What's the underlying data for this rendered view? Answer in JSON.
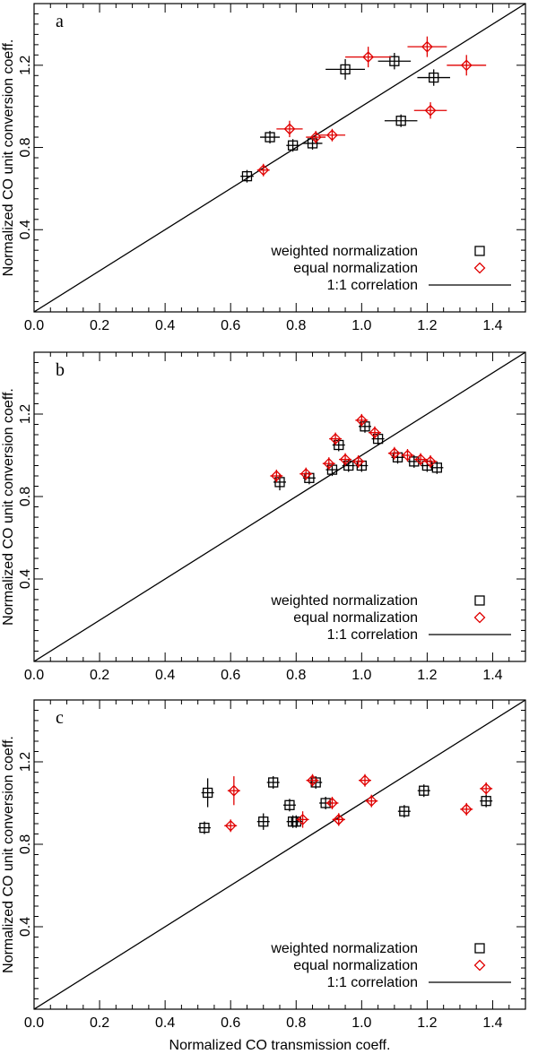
{
  "xlabel": "Normalized CO transmission coeff.",
  "ylabel": "Normalized CO unit conversion coeff.",
  "legend": {
    "weighted": "weighted normalization",
    "equal": "equal normalization",
    "line": "1:1 correlation"
  },
  "colors": {
    "weighted": "#000000",
    "equal": "#e00000",
    "line": "#000000"
  },
  "chart_data": [
    {
      "type": "scatter",
      "panel": "a",
      "xlim": [
        0.0,
        1.5
      ],
      "ylim": [
        0.0,
        1.5
      ],
      "xticks": [
        0.0,
        0.2,
        0.4,
        0.6,
        0.8,
        1.0,
        1.2,
        1.4
      ],
      "xtick_labels": [
        "0.0",
        "0.2",
        "0.4",
        "0.6",
        "0.8",
        "1.0",
        "1.2",
        "1.4"
      ],
      "yticks": [
        0.4,
        0.8,
        1.2
      ],
      "ytick_labels": [
        "0.4",
        "0.8",
        "1.2"
      ],
      "series": [
        {
          "name": "weighted normalization",
          "marker": "square",
          "points": [
            {
              "x": 0.65,
              "y": 0.66,
              "xerr": 0.02,
              "yerr": 0.02
            },
            {
              "x": 0.72,
              "y": 0.85,
              "xerr": 0.03,
              "yerr": 0.02
            },
            {
              "x": 0.79,
              "y": 0.81,
              "xerr": 0.02,
              "yerr": 0.02
            },
            {
              "x": 0.85,
              "y": 0.82,
              "xerr": 0.03,
              "yerr": 0.03
            },
            {
              "x": 0.95,
              "y": 1.18,
              "xerr": 0.06,
              "yerr": 0.05
            },
            {
              "x": 1.1,
              "y": 1.22,
              "xerr": 0.05,
              "yerr": 0.04
            },
            {
              "x": 1.12,
              "y": 0.93,
              "xerr": 0.05,
              "yerr": 0.02
            },
            {
              "x": 1.22,
              "y": 1.14,
              "xerr": 0.05,
              "yerr": 0.04
            }
          ]
        },
        {
          "name": "equal normalization",
          "marker": "diamond",
          "points": [
            {
              "x": 0.7,
              "y": 0.69,
              "xerr": 0.01,
              "yerr": 0.02
            },
            {
              "x": 0.78,
              "y": 0.89,
              "xerr": 0.04,
              "yerr": 0.04
            },
            {
              "x": 0.86,
              "y": 0.85,
              "xerr": 0.03,
              "yerr": 0.02
            },
            {
              "x": 0.91,
              "y": 0.86,
              "xerr": 0.04,
              "yerr": 0.02
            },
            {
              "x": 1.02,
              "y": 1.24,
              "xerr": 0.07,
              "yerr": 0.05
            },
            {
              "x": 1.2,
              "y": 1.29,
              "xerr": 0.06,
              "yerr": 0.05
            },
            {
              "x": 1.21,
              "y": 0.98,
              "xerr": 0.05,
              "yerr": 0.04
            },
            {
              "x": 1.32,
              "y": 1.2,
              "xerr": 0.06,
              "yerr": 0.05
            }
          ]
        },
        {
          "name": "1:1 correlation",
          "type": "line",
          "x": [
            0.0,
            1.5
          ],
          "values": [
            0.0,
            1.5
          ]
        }
      ]
    },
    {
      "type": "scatter",
      "panel": "b",
      "xlim": [
        0.0,
        1.5
      ],
      "ylim": [
        0.0,
        1.5
      ],
      "xticks": [
        0.0,
        0.2,
        0.4,
        0.6,
        0.8,
        1.0,
        1.2,
        1.4
      ],
      "xtick_labels": [
        "0.0",
        "0.2",
        "0.4",
        "0.6",
        "0.8",
        "1.0",
        "1.2",
        "1.4"
      ],
      "yticks": [
        0.4,
        0.8,
        1.2
      ],
      "ytick_labels": [
        "0.4",
        "0.8",
        "1.2"
      ],
      "series": [
        {
          "name": "weighted normalization",
          "marker": "square",
          "points": [
            {
              "x": 0.75,
              "y": 0.87,
              "xerr": 0.0,
              "yerr": 0.04
            },
            {
              "x": 0.84,
              "y": 0.89,
              "xerr": 0.0,
              "yerr": 0.0
            },
            {
              "x": 0.91,
              "y": 0.93,
              "xerr": 0.0,
              "yerr": 0.03
            },
            {
              "x": 0.93,
              "y": 1.05,
              "xerr": 0.0,
              "yerr": 0.02
            },
            {
              "x": 0.96,
              "y": 0.95,
              "xerr": 0.0,
              "yerr": 0.0
            },
            {
              "x": 1.0,
              "y": 0.95,
              "xerr": 0.0,
              "yerr": 0.0
            },
            {
              "x": 1.01,
              "y": 1.14,
              "xerr": 0.0,
              "yerr": 0.02
            },
            {
              "x": 1.05,
              "y": 1.08,
              "xerr": 0.0,
              "yerr": 0.03
            },
            {
              "x": 1.11,
              "y": 0.99,
              "xerr": 0.0,
              "yerr": 0.0
            },
            {
              "x": 1.16,
              "y": 0.97,
              "xerr": 0.0,
              "yerr": 0.0
            },
            {
              "x": 1.2,
              "y": 0.95,
              "xerr": 0.0,
              "yerr": 0.0
            },
            {
              "x": 1.23,
              "y": 0.94,
              "xerr": 0.0,
              "yerr": 0.0
            }
          ]
        },
        {
          "name": "equal normalization",
          "marker": "diamond",
          "points": [
            {
              "x": 0.74,
              "y": 0.9,
              "xerr": 0.0,
              "yerr": 0.03
            },
            {
              "x": 0.83,
              "y": 0.91,
              "xerr": 0.0,
              "yerr": 0.0
            },
            {
              "x": 0.9,
              "y": 0.96,
              "xerr": 0.0,
              "yerr": 0.02
            },
            {
              "x": 0.92,
              "y": 1.08,
              "xerr": 0.0,
              "yerr": 0.02
            },
            {
              "x": 0.95,
              "y": 0.98,
              "xerr": 0.0,
              "yerr": 0.0
            },
            {
              "x": 0.99,
              "y": 0.97,
              "xerr": 0.0,
              "yerr": 0.0
            },
            {
              "x": 1.0,
              "y": 1.17,
              "xerr": 0.0,
              "yerr": 0.02
            },
            {
              "x": 1.04,
              "y": 1.11,
              "xerr": 0.0,
              "yerr": 0.02
            },
            {
              "x": 1.1,
              "y": 1.01,
              "xerr": 0.0,
              "yerr": 0.0
            },
            {
              "x": 1.14,
              "y": 1.0,
              "xerr": 0.0,
              "yerr": 0.0
            },
            {
              "x": 1.18,
              "y": 0.98,
              "xerr": 0.0,
              "yerr": 0.0
            },
            {
              "x": 1.21,
              "y": 0.97,
              "xerr": 0.0,
              "yerr": 0.0
            }
          ]
        },
        {
          "name": "1:1 correlation",
          "type": "line",
          "x": [
            0.0,
            1.5
          ],
          "values": [
            0.0,
            1.5
          ]
        }
      ]
    },
    {
      "type": "scatter",
      "panel": "c",
      "xlim": [
        0.0,
        1.5
      ],
      "ylim": [
        0.0,
        1.5
      ],
      "xticks": [
        0.0,
        0.2,
        0.4,
        0.6,
        0.8,
        1.0,
        1.2,
        1.4
      ],
      "xtick_labels": [
        "0.0",
        "0.2",
        "0.4",
        "0.6",
        "0.8",
        "1.0",
        "1.2",
        "1.4"
      ],
      "yticks": [
        0.4,
        0.8,
        1.2
      ],
      "ytick_labels": [
        "0.4",
        "0.8",
        "1.2"
      ],
      "series": [
        {
          "name": "weighted normalization",
          "marker": "square",
          "points": [
            {
              "x": 0.52,
              "y": 0.88,
              "xerr": 0.0,
              "yerr": 0.0
            },
            {
              "x": 0.53,
              "y": 1.05,
              "xerr": 0.0,
              "yerr": 0.07
            },
            {
              "x": 0.7,
              "y": 0.91,
              "xerr": 0.0,
              "yerr": 0.04
            },
            {
              "x": 0.73,
              "y": 1.1,
              "xerr": 0.0,
              "yerr": 0.0
            },
            {
              "x": 0.78,
              "y": 0.99,
              "xerr": 0.0,
              "yerr": 0.0
            },
            {
              "x": 0.79,
              "y": 0.91,
              "xerr": 0.0,
              "yerr": 0.0
            },
            {
              "x": 0.8,
              "y": 0.91,
              "xerr": 0.0,
              "yerr": 0.02
            },
            {
              "x": 0.86,
              "y": 1.1,
              "xerr": 0.0,
              "yerr": 0.0
            },
            {
              "x": 0.89,
              "y": 1.0,
              "xerr": 0.0,
              "yerr": 0.0
            },
            {
              "x": 1.13,
              "y": 0.96,
              "xerr": 0.0,
              "yerr": 0.0
            },
            {
              "x": 1.19,
              "y": 1.06,
              "xerr": 0.0,
              "yerr": 0.02
            },
            {
              "x": 1.38,
              "y": 1.01,
              "xerr": 0.0,
              "yerr": 0.0
            }
          ]
        },
        {
          "name": "equal normalization",
          "marker": "diamond",
          "points": [
            {
              "x": 0.6,
              "y": 0.89,
              "xerr": 0.0,
              "yerr": 0.0
            },
            {
              "x": 0.61,
              "y": 1.06,
              "xerr": 0.0,
              "yerr": 0.07
            },
            {
              "x": 0.82,
              "y": 0.92,
              "xerr": 0.0,
              "yerr": 0.04
            },
            {
              "x": 0.85,
              "y": 1.11,
              "xerr": 0.0,
              "yerr": 0.0
            },
            {
              "x": 0.91,
              "y": 1.0,
              "xerr": 0.0,
              "yerr": 0.0
            },
            {
              "x": 0.93,
              "y": 0.92,
              "xerr": 0.0,
              "yerr": 0.0
            },
            {
              "x": 0.93,
              "y": 0.92,
              "xerr": 0.0,
              "yerr": 0.0
            },
            {
              "x": 1.01,
              "y": 1.11,
              "xerr": 0.0,
              "yerr": 0.0
            },
            {
              "x": 1.03,
              "y": 1.01,
              "xerr": 0.0,
              "yerr": 0.0
            },
            {
              "x": 1.32,
              "y": 0.97,
              "xerr": 0.0,
              "yerr": 0.0
            },
            {
              "x": 1.38,
              "y": 1.07,
              "xerr": 0.0,
              "yerr": 0.02
            }
          ]
        },
        {
          "name": "1:1 correlation",
          "type": "line",
          "x": [
            0.0,
            1.5
          ],
          "values": [
            0.0,
            1.5
          ]
        }
      ]
    }
  ]
}
